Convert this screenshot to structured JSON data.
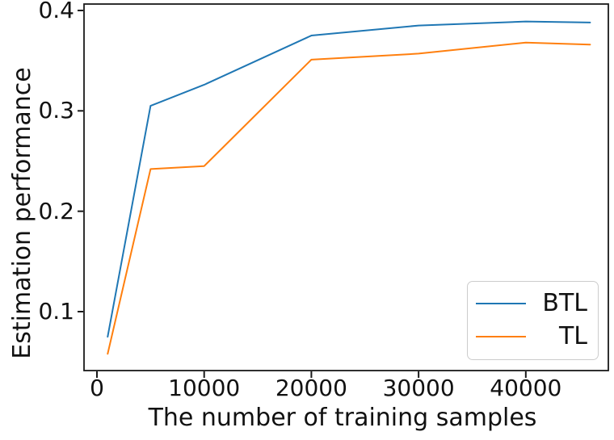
{
  "chart_data": {
    "type": "line",
    "title": "",
    "xlabel": "The number of training samples",
    "ylabel": "Estimation performance",
    "x": [
      1000,
      5000,
      10000,
      20000,
      30000,
      40000,
      46000
    ],
    "series": [
      {
        "name": "BTL",
        "color": "#1f77b4",
        "values": [
          0.075,
          0.305,
          0.326,
          0.375,
          0.385,
          0.389,
          0.388
        ]
      },
      {
        "name": "TL",
        "color": "#ff7f0e",
        "values": [
          0.058,
          0.242,
          0.245,
          0.351,
          0.357,
          0.368,
          0.366
        ]
      }
    ],
    "x_ticks": {
      "values": [
        0,
        10000,
        20000,
        30000,
        40000
      ],
      "labels": [
        "0",
        "10000",
        "20000",
        "30000",
        "40000"
      ]
    },
    "y_ticks": {
      "values": [
        0.1,
        0.2,
        0.3,
        0.4
      ],
      "labels": [
        "0.1",
        "0.2",
        "0.3",
        "0.4"
      ]
    },
    "xlim": [
      -1206,
      47700
    ],
    "ylim": [
      0.0413,
      0.4064
    ],
    "grid": false,
    "legend_position": "lower right",
    "axis_color": "#1a1a1a"
  }
}
